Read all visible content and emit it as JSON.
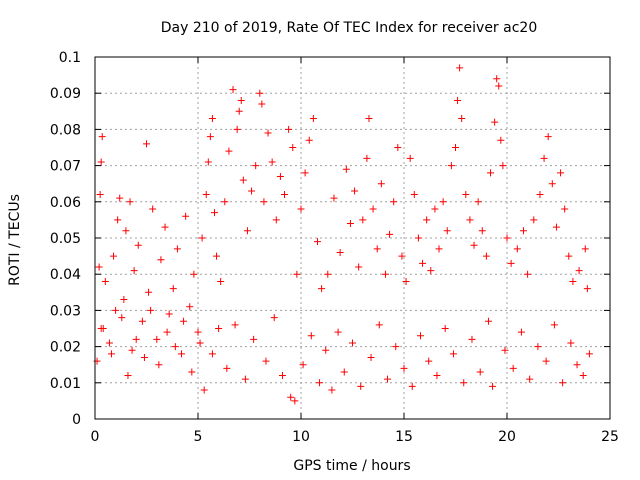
{
  "chart_data": {
    "type": "scatter",
    "title": "Day 210 of 2019, Rate Of TEC Index for receiver ac20",
    "xlabel": "GPS time / hours",
    "ylabel": "ROTI / TECUs",
    "xlim": [
      0,
      25
    ],
    "ylim": [
      0,
      0.1
    ],
    "xticks": [
      {
        "value": 0,
        "label": "0"
      },
      {
        "value": 5,
        "label": "5"
      },
      {
        "value": 10,
        "label": "10"
      },
      {
        "value": 15,
        "label": "15"
      },
      {
        "value": 20,
        "label": "20"
      },
      {
        "value": 25,
        "label": "25"
      }
    ],
    "yticks": [
      {
        "value": 0,
        "label": "0"
      },
      {
        "value": 0.01,
        "label": "0.01"
      },
      {
        "value": 0.02,
        "label": "0.02"
      },
      {
        "value": 0.03,
        "label": "0.03"
      },
      {
        "value": 0.04,
        "label": "0.04"
      },
      {
        "value": 0.05,
        "label": "0.05"
      },
      {
        "value": 0.06,
        "label": "0.06"
      },
      {
        "value": 0.07,
        "label": "0.07"
      },
      {
        "value": 0.08,
        "label": "0.08"
      },
      {
        "value": 0.09,
        "label": "0.09"
      },
      {
        "value": 0.1,
        "label": "0.1"
      }
    ],
    "grid": true,
    "marker": "+",
    "marker_color": "#ff0000",
    "series": [
      {
        "name": "ROTI",
        "points": [
          [
            0.1,
            0.016
          ],
          [
            0.2,
            0.042
          ],
          [
            0.25,
            0.062
          ],
          [
            0.3,
            0.071
          ],
          [
            0.35,
            0.078
          ],
          [
            0.4,
            0.025
          ],
          [
            0.5,
            0.038
          ],
          [
            0.7,
            0.021
          ],
          [
            0.9,
            0.045
          ],
          [
            1.0,
            0.03
          ],
          [
            1.1,
            0.055
          ],
          [
            1.2,
            0.061
          ],
          [
            1.4,
            0.033
          ],
          [
            1.5,
            0.052
          ],
          [
            1.7,
            0.06
          ],
          [
            1.8,
            0.019
          ],
          [
            1.9,
            0.041
          ],
          [
            2.1,
            0.048
          ],
          [
            2.3,
            0.027
          ],
          [
            2.5,
            0.076
          ],
          [
            2.6,
            0.035
          ],
          [
            2.8,
            0.058
          ],
          [
            3.0,
            0.022
          ],
          [
            3.2,
            0.044
          ],
          [
            3.4,
            0.053
          ],
          [
            3.6,
            0.029
          ],
          [
            3.8,
            0.036
          ],
          [
            4.0,
            0.047
          ],
          [
            4.2,
            0.018
          ],
          [
            4.4,
            0.056
          ],
          [
            4.6,
            0.031
          ],
          [
            4.8,
            0.04
          ],
          [
            5.0,
            0.024
          ],
          [
            5.2,
            0.05
          ],
          [
            5.4,
            0.062
          ],
          [
            5.5,
            0.071
          ],
          [
            5.6,
            0.078
          ],
          [
            5.7,
            0.083
          ],
          [
            5.8,
            0.057
          ],
          [
            5.9,
            0.045
          ],
          [
            6.1,
            0.038
          ],
          [
            6.3,
            0.06
          ],
          [
            6.5,
            0.074
          ],
          [
            6.7,
            0.091
          ],
          [
            6.9,
            0.08
          ],
          [
            7.0,
            0.085
          ],
          [
            7.1,
            0.088
          ],
          [
            7.2,
            0.066
          ],
          [
            7.4,
            0.052
          ],
          [
            7.6,
            0.063
          ],
          [
            7.8,
            0.07
          ],
          [
            8.0,
            0.09
          ],
          [
            8.1,
            0.087
          ],
          [
            8.2,
            0.06
          ],
          [
            8.4,
            0.079
          ],
          [
            8.6,
            0.071
          ],
          [
            8.8,
            0.055
          ],
          [
            9.0,
            0.067
          ],
          [
            9.2,
            0.062
          ],
          [
            9.4,
            0.08
          ],
          [
            9.6,
            0.075
          ],
          [
            9.8,
            0.04
          ],
          [
            10.0,
            0.058
          ],
          [
            10.2,
            0.068
          ],
          [
            10.4,
            0.077
          ],
          [
            10.6,
            0.083
          ],
          [
            10.8,
            0.049
          ],
          [
            11.0,
            0.036
          ],
          [
            11.3,
            0.04
          ],
          [
            11.6,
            0.061
          ],
          [
            11.9,
            0.046
          ],
          [
            12.2,
            0.069
          ],
          [
            12.4,
            0.054
          ],
          [
            12.6,
            0.063
          ],
          [
            12.8,
            0.042
          ],
          [
            13.0,
            0.055
          ],
          [
            13.2,
            0.072
          ],
          [
            13.3,
            0.083
          ],
          [
            13.5,
            0.058
          ],
          [
            13.7,
            0.047
          ],
          [
            13.9,
            0.065
          ],
          [
            14.1,
            0.04
          ],
          [
            14.3,
            0.051
          ],
          [
            14.5,
            0.06
          ],
          [
            14.7,
            0.075
          ],
          [
            14.9,
            0.045
          ],
          [
            15.1,
            0.038
          ],
          [
            15.3,
            0.072
          ],
          [
            15.5,
            0.062
          ],
          [
            15.7,
            0.05
          ],
          [
            15.9,
            0.043
          ],
          [
            16.1,
            0.055
          ],
          [
            16.3,
            0.041
          ],
          [
            16.5,
            0.058
          ],
          [
            16.7,
            0.047
          ],
          [
            16.9,
            0.06
          ],
          [
            17.1,
            0.052
          ],
          [
            17.3,
            0.07
          ],
          [
            17.5,
            0.075
          ],
          [
            17.6,
            0.088
          ],
          [
            17.7,
            0.097
          ],
          [
            17.8,
            0.083
          ],
          [
            18.0,
            0.062
          ],
          [
            18.2,
            0.055
          ],
          [
            18.4,
            0.048
          ],
          [
            18.6,
            0.06
          ],
          [
            18.8,
            0.052
          ],
          [
            19.0,
            0.045
          ],
          [
            19.2,
            0.068
          ],
          [
            19.4,
            0.082
          ],
          [
            19.5,
            0.094
          ],
          [
            19.6,
            0.092
          ],
          [
            19.7,
            0.077
          ],
          [
            19.8,
            0.07
          ],
          [
            20.0,
            0.05
          ],
          [
            20.2,
            0.043
          ],
          [
            20.5,
            0.047
          ],
          [
            20.8,
            0.052
          ],
          [
            21.0,
            0.04
          ],
          [
            21.3,
            0.055
          ],
          [
            21.6,
            0.062
          ],
          [
            21.8,
            0.072
          ],
          [
            22.0,
            0.078
          ],
          [
            22.2,
            0.065
          ],
          [
            22.4,
            0.053
          ],
          [
            22.6,
            0.068
          ],
          [
            22.8,
            0.058
          ],
          [
            23.0,
            0.045
          ],
          [
            23.2,
            0.038
          ],
          [
            23.5,
            0.041
          ],
          [
            23.8,
            0.047
          ],
          [
            23.9,
            0.036
          ],
          [
            0.3,
            0.025
          ],
          [
            0.8,
            0.018
          ],
          [
            1.3,
            0.028
          ],
          [
            1.6,
            0.012
          ],
          [
            2.0,
            0.022
          ],
          [
            2.4,
            0.017
          ],
          [
            2.7,
            0.03
          ],
          [
            3.1,
            0.015
          ],
          [
            3.5,
            0.024
          ],
          [
            3.9,
            0.02
          ],
          [
            4.3,
            0.027
          ],
          [
            4.7,
            0.013
          ],
          [
            5.1,
            0.021
          ],
          [
            5.3,
            0.008
          ],
          [
            5.7,
            0.018
          ],
          [
            6.0,
            0.025
          ],
          [
            6.4,
            0.014
          ],
          [
            6.8,
            0.026
          ],
          [
            7.3,
            0.011
          ],
          [
            7.7,
            0.022
          ],
          [
            8.3,
            0.016
          ],
          [
            8.7,
            0.028
          ],
          [
            9.1,
            0.012
          ],
          [
            9.5,
            0.006
          ],
          [
            9.7,
            0.005
          ],
          [
            10.1,
            0.015
          ],
          [
            10.5,
            0.023
          ],
          [
            10.9,
            0.01
          ],
          [
            11.2,
            0.019
          ],
          [
            11.5,
            0.008
          ],
          [
            11.8,
            0.024
          ],
          [
            12.1,
            0.013
          ],
          [
            12.5,
            0.021
          ],
          [
            12.9,
            0.009
          ],
          [
            13.4,
            0.017
          ],
          [
            13.8,
            0.026
          ],
          [
            14.2,
            0.011
          ],
          [
            14.6,
            0.02
          ],
          [
            15.0,
            0.014
          ],
          [
            15.4,
            0.009
          ],
          [
            15.8,
            0.023
          ],
          [
            16.2,
            0.016
          ],
          [
            16.6,
            0.012
          ],
          [
            17.0,
            0.025
          ],
          [
            17.4,
            0.018
          ],
          [
            17.9,
            0.01
          ],
          [
            18.3,
            0.022
          ],
          [
            18.7,
            0.013
          ],
          [
            19.1,
            0.027
          ],
          [
            19.3,
            0.009
          ],
          [
            19.9,
            0.019
          ],
          [
            20.3,
            0.014
          ],
          [
            20.7,
            0.024
          ],
          [
            21.1,
            0.011
          ],
          [
            21.5,
            0.02
          ],
          [
            21.9,
            0.016
          ],
          [
            22.3,
            0.026
          ],
          [
            22.7,
            0.01
          ],
          [
            23.1,
            0.021
          ],
          [
            23.4,
            0.015
          ],
          [
            23.7,
            0.012
          ],
          [
            24.0,
            0.018
          ]
        ]
      }
    ]
  }
}
